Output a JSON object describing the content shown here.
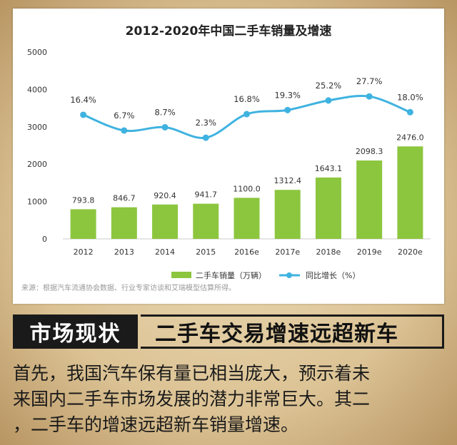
{
  "chart_data": {
    "type": "bar+line",
    "title": "2012-2020年中国二手车销量及增速",
    "categories": [
      "2012",
      "2013",
      "2014",
      "2015",
      "2016e",
      "2017e",
      "2018e",
      "2019e",
      "2020e"
    ],
    "series": [
      {
        "name": "二手车销量（万辆）",
        "type": "bar",
        "axis": "left",
        "color": "#8cc63f",
        "values": [
          793.8,
          846.7,
          920.4,
          941.7,
          1100.0,
          1312.4,
          1643.1,
          2098.3,
          2476.0
        ],
        "labels": [
          "793.8",
          "846.7",
          "920.4",
          "941.7",
          "1100.0",
          "1312.4",
          "1643.1",
          "2098.3",
          "2476.0"
        ]
      },
      {
        "name": "同比增长（%）",
        "type": "line",
        "axis": "right",
        "color": "#3fb3e0",
        "values": [
          16.4,
          6.7,
          8.7,
          2.3,
          16.8,
          19.3,
          25.2,
          27.7,
          18.0
        ],
        "labels": [
          "16.4%",
          "6.7%",
          "8.7%",
          "2.3%",
          "16.8%",
          "19.3%",
          "25.2%",
          "27.7%",
          "18.0%"
        ]
      }
    ],
    "yaxis": {
      "min": 0,
      "max": 5000,
      "ticks": [
        "0",
        "1000",
        "2000",
        "3000",
        "4000",
        "5000"
      ]
    },
    "y2axis": {
      "min": -60,
      "max": 55
    },
    "legend_position": "bottom",
    "source": "来源：根据汽车流通协会数据、行业专家访谈和艾瑞模型估算所得。"
  },
  "section": {
    "tag": "市场现状",
    "headline": "二手车交易增速远超新车"
  },
  "body_lines": [
    "首先，我国汽车保有量已相当庞大，预示着未",
    "来国内二手车市场发展的潜力非常巨大。其二",
    "，二手车的增速远超新车销量增速。"
  ]
}
